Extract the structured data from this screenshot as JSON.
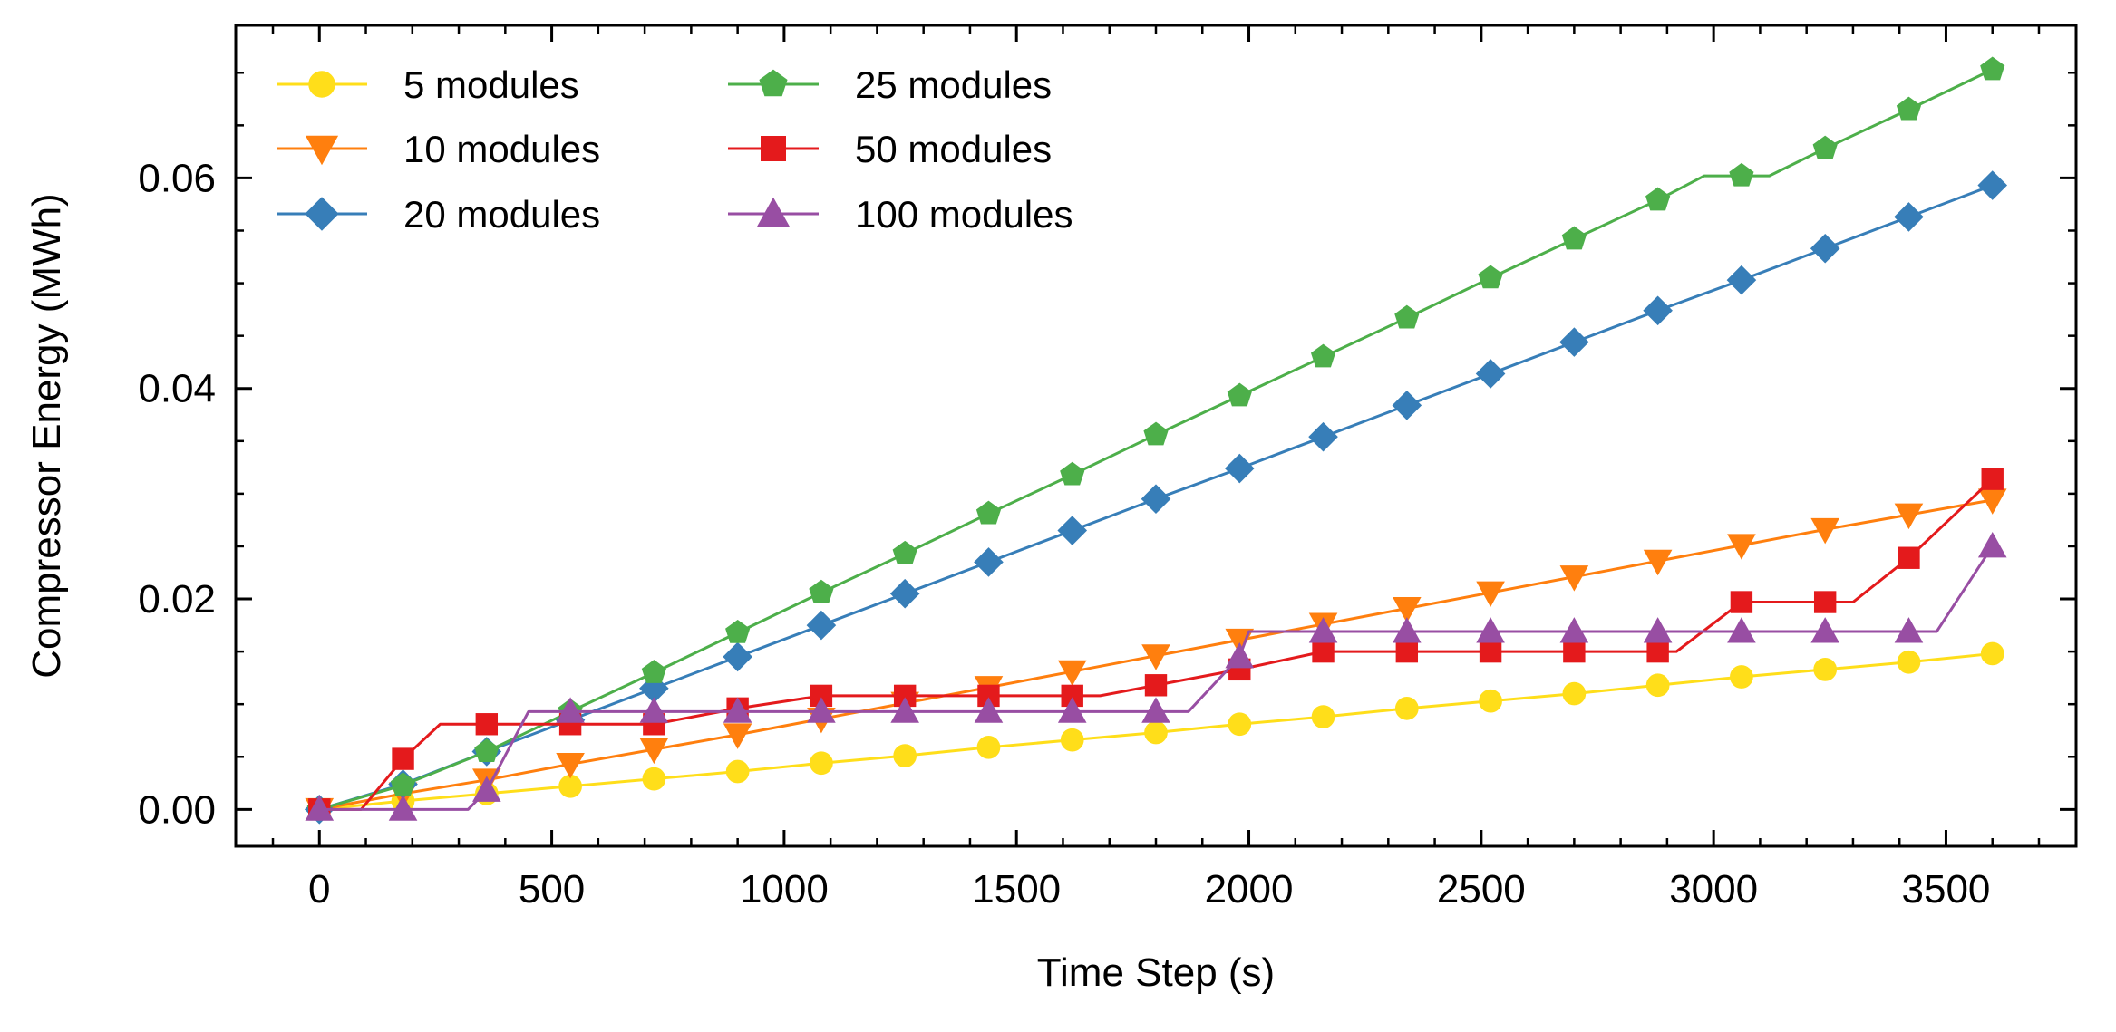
{
  "chart_data": {
    "type": "line",
    "title": "",
    "xlabel": "Time Step (s)",
    "ylabel": "Compressor Energy (MWh)",
    "xlim": [
      -180,
      3780
    ],
    "ylim": [
      -0.0035,
      0.0745
    ],
    "xticks": [
      0,
      500,
      1000,
      1500,
      2000,
      2500,
      3000,
      3500
    ],
    "xtick_labels": [
      "0",
      "500",
      "1000",
      "1500",
      "2000",
      "2500",
      "3000",
      "3500"
    ],
    "yticks": [
      0.0,
      0.02,
      0.04,
      0.06
    ],
    "ytick_labels": [
      "0.00",
      "0.02",
      "0.04",
      "0.06"
    ],
    "grid": false,
    "legend_position": "top-left",
    "legend_columns": 2,
    "series": [
      {
        "name": "5 modules",
        "color": "#FFDE1A",
        "marker": "circle",
        "markers": {
          "x": [
            0,
            180,
            360,
            540,
            720,
            900,
            1080,
            1260,
            1440,
            1620,
            1800,
            1980,
            2160,
            2340,
            2520,
            2700,
            2880,
            3060,
            3240,
            3420,
            3600
          ],
          "y": [
            0.0,
            0.0008,
            0.0015,
            0.0022,
            0.0029,
            0.0036,
            0.0044,
            0.0051,
            0.0059,
            0.0066,
            0.0073,
            0.0081,
            0.0088,
            0.0096,
            0.0103,
            0.011,
            0.0118,
            0.0126,
            0.0133,
            0.014,
            0.0148
          ]
        },
        "line": {
          "x": [
            0,
            180,
            360,
            540,
            720,
            900,
            1080,
            1260,
            1440,
            1620,
            1800,
            1980,
            2160,
            2340,
            2520,
            2700,
            2880,
            3060,
            3240,
            3420,
            3600
          ],
          "y": [
            0.0,
            0.0008,
            0.0015,
            0.0022,
            0.0029,
            0.0036,
            0.0044,
            0.0051,
            0.0059,
            0.0066,
            0.0073,
            0.0081,
            0.0088,
            0.0096,
            0.0103,
            0.011,
            0.0118,
            0.0126,
            0.0133,
            0.014,
            0.0148
          ]
        }
      },
      {
        "name": "10 modules",
        "color": "#FF7F0E",
        "marker": "triangle-down",
        "markers": {
          "x": [
            0,
            180,
            360,
            540,
            720,
            900,
            1080,
            1260,
            1440,
            1620,
            1800,
            1980,
            2160,
            2340,
            2520,
            2700,
            2880,
            3060,
            3240,
            3420,
            3600
          ],
          "y": [
            0.0,
            0.0015,
            0.0028,
            0.0043,
            0.0057,
            0.0071,
            0.0086,
            0.0101,
            0.0116,
            0.0131,
            0.0146,
            0.0161,
            0.0176,
            0.0191,
            0.0206,
            0.0221,
            0.0236,
            0.0251,
            0.0266,
            0.028,
            0.0294
          ]
        },
        "line": {
          "x": [
            0,
            180,
            360,
            540,
            720,
            900,
            1080,
            1260,
            1440,
            1620,
            1800,
            1980,
            2160,
            2340,
            2520,
            2700,
            2880,
            3060,
            3240,
            3420,
            3600
          ],
          "y": [
            0.0,
            0.0015,
            0.0028,
            0.0043,
            0.0057,
            0.0071,
            0.0086,
            0.0101,
            0.0116,
            0.0131,
            0.0146,
            0.0161,
            0.0176,
            0.0191,
            0.0206,
            0.0221,
            0.0236,
            0.0251,
            0.0266,
            0.028,
            0.0294
          ]
        }
      },
      {
        "name": "20 modules",
        "color": "#377EB8",
        "marker": "diamond",
        "markers": {
          "x": [
            0,
            180,
            360,
            540,
            720,
            900,
            1080,
            1260,
            1440,
            1620,
            1800,
            1980,
            2160,
            2340,
            2520,
            2700,
            2880,
            3060,
            3240,
            3420,
            3600
          ],
          "y": [
            0.0,
            0.0024,
            0.0055,
            0.0085,
            0.0115,
            0.0145,
            0.0175,
            0.0205,
            0.0235,
            0.0265,
            0.0295,
            0.0324,
            0.0354,
            0.0384,
            0.0414,
            0.0444,
            0.0474,
            0.0503,
            0.0533,
            0.0563,
            0.0593
          ]
        },
        "line": {
          "x": [
            0,
            180,
            360,
            540,
            720,
            900,
            1080,
            1260,
            1440,
            1620,
            1800,
            1980,
            2160,
            2340,
            2520,
            2700,
            2880,
            3060,
            3240,
            3420,
            3600
          ],
          "y": [
            0.0,
            0.0024,
            0.0055,
            0.0085,
            0.0115,
            0.0145,
            0.0175,
            0.0205,
            0.0235,
            0.0265,
            0.0295,
            0.0324,
            0.0354,
            0.0384,
            0.0414,
            0.0444,
            0.0474,
            0.0503,
            0.0533,
            0.0563,
            0.0593
          ]
        }
      },
      {
        "name": "25 modules",
        "color": "#4DAF4A",
        "marker": "pentagon",
        "markers": {
          "x": [
            0,
            180,
            360,
            540,
            720,
            900,
            1080,
            1260,
            1440,
            1620,
            1800,
            1980,
            2160,
            2340,
            2520,
            2700,
            2880,
            3060,
            3240,
            3420,
            3600
          ],
          "y": [
            0.0,
            0.0023,
            0.0055,
            0.0093,
            0.013,
            0.0168,
            0.0206,
            0.0243,
            0.0281,
            0.0318,
            0.0356,
            0.0393,
            0.043,
            0.0467,
            0.0505,
            0.0542,
            0.0579,
            0.0602,
            0.0628,
            0.0665,
            0.0703
          ]
        },
        "line": {
          "x": [
            0,
            180,
            360,
            540,
            720,
            900,
            1080,
            1260,
            1440,
            1620,
            1800,
            1980,
            2160,
            2340,
            2520,
            2700,
            2880,
            2980,
            3120,
            3240,
            3420,
            3600
          ],
          "y": [
            0.0,
            0.0023,
            0.0055,
            0.0093,
            0.013,
            0.0168,
            0.0206,
            0.0243,
            0.0281,
            0.0318,
            0.0356,
            0.0393,
            0.043,
            0.0467,
            0.0505,
            0.0542,
            0.0579,
            0.0602,
            0.0602,
            0.0628,
            0.0665,
            0.0703
          ]
        }
      },
      {
        "name": "50 modules",
        "color": "#E41A1C",
        "marker": "square",
        "markers": {
          "x": [
            0,
            180,
            360,
            540,
            720,
            900,
            1080,
            1260,
            1440,
            1620,
            1800,
            1980,
            2160,
            2340,
            2520,
            2700,
            2880,
            3060,
            3240,
            3420,
            3600
          ],
          "y": [
            0.0,
            0.0048,
            0.0081,
            0.0081,
            0.0081,
            0.0096,
            0.0108,
            0.0108,
            0.0108,
            0.0108,
            0.0118,
            0.0133,
            0.015,
            0.015,
            0.015,
            0.015,
            0.015,
            0.0197,
            0.0197,
            0.0239,
            0.0314
          ]
        },
        "line": {
          "x": [
            0,
            90,
            180,
            260,
            360,
            540,
            720,
            900,
            1080,
            1260,
            1440,
            1620,
            1680,
            1800,
            1980,
            2160,
            2340,
            2520,
            2700,
            2880,
            2920,
            3060,
            3240,
            3300,
            3420,
            3600
          ],
          "y": [
            0.0,
            0.0,
            0.0048,
            0.0081,
            0.0081,
            0.0081,
            0.0081,
            0.0096,
            0.0108,
            0.0108,
            0.0108,
            0.0108,
            0.0108,
            0.0118,
            0.0133,
            0.015,
            0.015,
            0.015,
            0.015,
            0.015,
            0.015,
            0.0197,
            0.0197,
            0.0197,
            0.0239,
            0.0314
          ]
        }
      },
      {
        "name": "100 modules",
        "color": "#984EA3",
        "marker": "triangle-up",
        "markers": {
          "x": [
            0,
            180,
            360,
            540,
            720,
            900,
            1080,
            1260,
            1440,
            1620,
            1800,
            1980,
            2160,
            2340,
            2520,
            2700,
            2880,
            3060,
            3240,
            3420,
            3600
          ],
          "y": [
            0.0,
            0.0,
            0.0018,
            0.0093,
            0.0093,
            0.0093,
            0.0093,
            0.0093,
            0.0093,
            0.0093,
            0.0093,
            0.0145,
            0.0169,
            0.0169,
            0.0169,
            0.0169,
            0.0169,
            0.0169,
            0.0169,
            0.0169,
            0.025
          ]
        },
        "line": {
          "x": [
            0,
            180,
            320,
            360,
            450,
            540,
            720,
            900,
            1080,
            1260,
            1440,
            1620,
            1800,
            1870,
            1980,
            2000,
            2160,
            2340,
            2520,
            2700,
            2880,
            3060,
            3240,
            3420,
            3480,
            3600
          ],
          "y": [
            0.0,
            0.0,
            0.0,
            0.0018,
            0.0093,
            0.0093,
            0.0093,
            0.0093,
            0.0093,
            0.0093,
            0.0093,
            0.0093,
            0.0093,
            0.0093,
            0.0145,
            0.0169,
            0.0169,
            0.0169,
            0.0169,
            0.0169,
            0.0169,
            0.0169,
            0.0169,
            0.0169,
            0.0169,
            0.025
          ]
        }
      }
    ]
  }
}
